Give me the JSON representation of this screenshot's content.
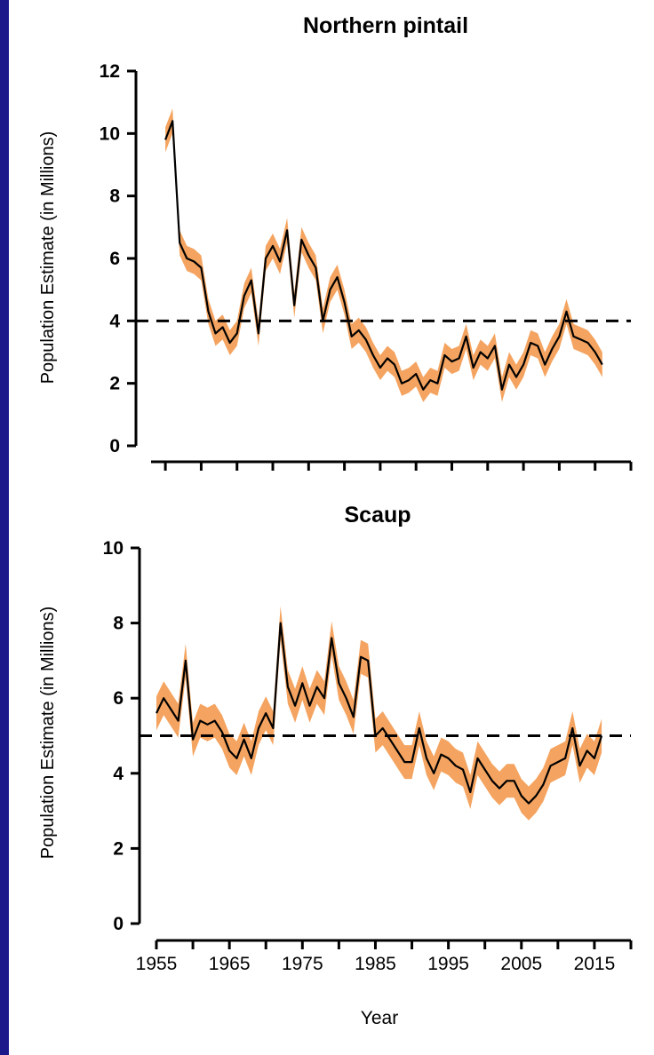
{
  "colors": {
    "background": "#2e2cb8",
    "band": "#f4a460",
    "line": "#000000",
    "reference": "#000000"
  },
  "chart_data": [
    {
      "type": "line",
      "title": "Northern pintail",
      "ylabel": "Population Estimate (in Millions)",
      "xlabel": "",
      "ylim": [
        0,
        12
      ],
      "yticks": [
        0,
        2,
        4,
        6,
        8,
        10,
        12
      ],
      "xlim": [
        1953,
        2020
      ],
      "xticks": [
        1955,
        1960,
        1965,
        1970,
        1975,
        1980,
        1985,
        1990,
        1995,
        2000,
        2005,
        2010,
        2015,
        2020
      ],
      "xtick_labels": [],
      "reference_line": 4,
      "band": "confidence interval (shaded)",
      "x": [
        1955,
        1956,
        1957,
        1958,
        1959,
        1960,
        1961,
        1962,
        1963,
        1964,
        1965,
        1966,
        1967,
        1968,
        1969,
        1970,
        1971,
        1972,
        1973,
        1974,
        1975,
        1976,
        1977,
        1978,
        1979,
        1980,
        1981,
        1982,
        1983,
        1984,
        1985,
        1986,
        1987,
        1988,
        1989,
        1990,
        1991,
        1992,
        1993,
        1994,
        1995,
        1996,
        1997,
        1998,
        1999,
        2000,
        2001,
        2002,
        2003,
        2004,
        2005,
        2006,
        2007,
        2008,
        2009,
        2010,
        2011,
        2012,
        2013,
        2014,
        2015,
        2016
      ],
      "y": [
        9.8,
        10.4,
        6.5,
        6.0,
        5.9,
        5.7,
        4.3,
        3.6,
        3.8,
        3.3,
        3.6,
        4.8,
        5.3,
        3.6,
        6.0,
        6.4,
        5.9,
        6.9,
        4.5,
        6.6,
        6.1,
        5.7,
        4.0,
        5.0,
        5.4,
        4.6,
        3.5,
        3.7,
        3.4,
        2.9,
        2.5,
        2.8,
        2.6,
        2.0,
        2.1,
        2.3,
        1.8,
        2.1,
        2.0,
        2.9,
        2.7,
        2.8,
        3.5,
        2.5,
        3.0,
        2.8,
        3.2,
        1.8,
        2.6,
        2.2,
        2.6,
        3.3,
        3.2,
        2.6,
        3.1,
        3.5,
        4.3,
        3.5,
        3.4,
        3.3,
        3.0,
        2.6
      ],
      "band_half_width": 0.4
    },
    {
      "type": "line",
      "title": "Scaup",
      "ylabel": "Population Estimate (in Millions)",
      "xlabel": "Year",
      "ylim": [
        0,
        10
      ],
      "yticks": [
        0,
        2,
        4,
        6,
        8,
        10
      ],
      "xlim": [
        1955,
        2020
      ],
      "xticks": [
        1955,
        1960,
        1965,
        1970,
        1975,
        1980,
        1985,
        1990,
        1995,
        2000,
        2005,
        2010,
        2015,
        2020
      ],
      "xtick_labels": [
        "1955",
        "1965",
        "1975",
        "1985",
        "1995",
        "2005",
        "2015"
      ],
      "reference_line": 5,
      "band": "confidence interval (shaded)",
      "x": [
        1955,
        1956,
        1957,
        1958,
        1959,
        1960,
        1961,
        1962,
        1963,
        1964,
        1965,
        1966,
        1967,
        1968,
        1969,
        1970,
        1971,
        1972,
        1973,
        1974,
        1975,
        1976,
        1977,
        1978,
        1979,
        1980,
        1981,
        1982,
        1983,
        1984,
        1985,
        1986,
        1987,
        1988,
        1989,
        1990,
        1991,
        1992,
        1993,
        1994,
        1995,
        1996,
        1997,
        1998,
        1999,
        2000,
        2001,
        2002,
        2003,
        2004,
        2005,
        2006,
        2007,
        2008,
        2009,
        2010,
        2011,
        2012,
        2013,
        2014,
        2015,
        2016
      ],
      "y": [
        5.6,
        6.0,
        5.7,
        5.4,
        7.0,
        4.9,
        5.4,
        5.3,
        5.4,
        5.1,
        4.6,
        4.4,
        4.9,
        4.4,
        5.2,
        5.6,
        5.2,
        8.0,
        6.3,
        5.8,
        6.4,
        5.8,
        6.3,
        6.0,
        7.6,
        6.4,
        6.0,
        5.5,
        7.1,
        7.0,
        5.0,
        5.2,
        4.9,
        4.6,
        4.3,
        4.3,
        5.2,
        4.4,
        4.0,
        4.5,
        4.4,
        4.2,
        4.1,
        3.5,
        4.4,
        4.1,
        3.8,
        3.6,
        3.8,
        3.8,
        3.4,
        3.2,
        3.4,
        3.7,
        4.2,
        4.3,
        4.4,
        5.2,
        4.2,
        4.6,
        4.4,
        5.0
      ],
      "band_half_width": 0.45
    }
  ]
}
